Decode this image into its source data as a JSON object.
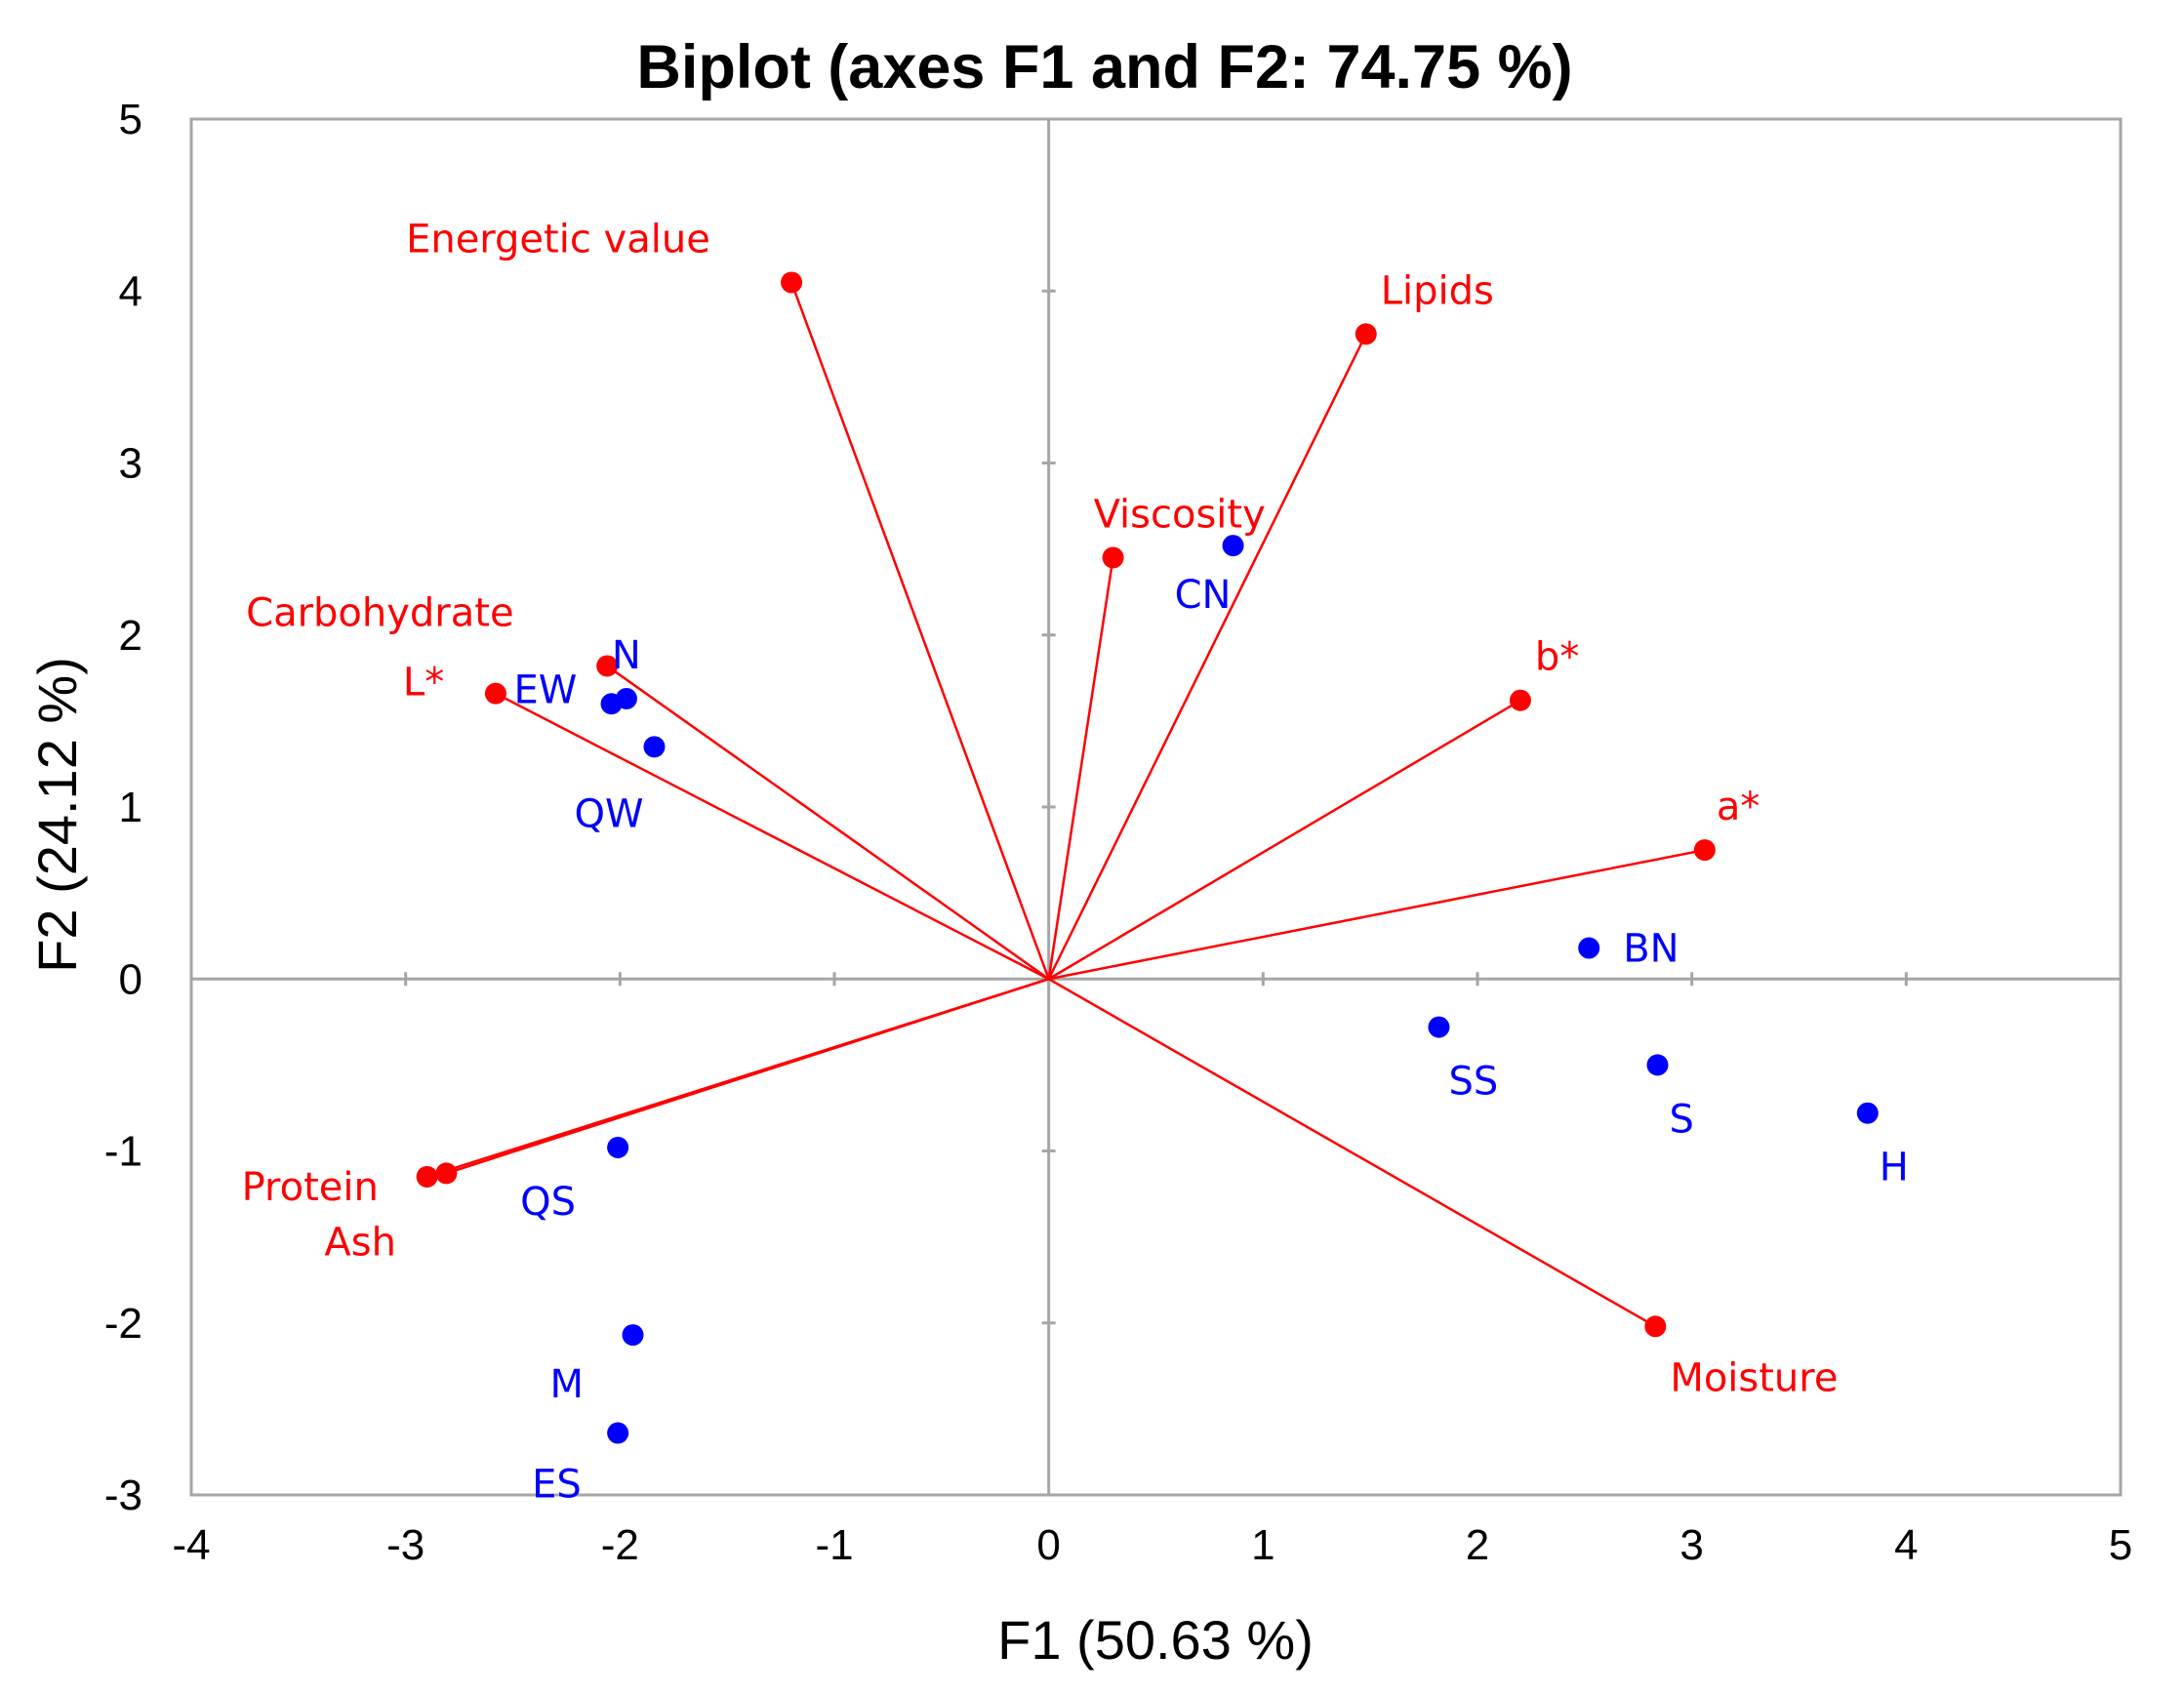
{
  "chart_data": {
    "type": "scatter",
    "title": "Biplot (axes F1 and F2: 74.75 %)",
    "xlabel": "F1 (50.63 %)",
    "ylabel": "F2 (24.12 %)",
    "xlim": [
      -4,
      5
    ],
    "ylim": [
      -3,
      5
    ],
    "x_ticks": [
      -4,
      -3,
      -2,
      -1,
      0,
      1,
      2,
      3,
      4,
      5
    ],
    "y_ticks": [
      -3,
      -2,
      -1,
      0,
      1,
      2,
      3,
      4,
      5
    ],
    "grid": false,
    "colors": {
      "variables": "#ff0000",
      "observations": "#0000ff",
      "frame": "#a6a6a6"
    },
    "variables": [
      {
        "name": "Energetic value",
        "x": -1.2,
        "y": 4.05
      },
      {
        "name": "Lipids",
        "x": 1.48,
        "y": 3.75
      },
      {
        "name": "Viscosity",
        "x": 0.3,
        "y": 2.45
      },
      {
        "name": "Carbohydrate",
        "x": -2.06,
        "y": 1.82
      },
      {
        "name": "L*",
        "x": -2.58,
        "y": 1.66
      },
      {
        "name": "b*",
        "x": 2.2,
        "y": 1.62
      },
      {
        "name": "a*",
        "x": 3.06,
        "y": 0.75
      },
      {
        "name": "Protein",
        "x": -2.9,
        "y": -1.15
      },
      {
        "name": "Ash",
        "x": -2.81,
        "y": -1.13
      },
      {
        "name": "Moisture",
        "x": 2.83,
        "y": -2.02
      }
    ],
    "observations": [
      {
        "name": "CN",
        "x": 0.86,
        "y": 2.52
      },
      {
        "name": "N",
        "x": -1.97,
        "y": 1.63
      },
      {
        "name": "EW",
        "x": -2.04,
        "y": 1.6
      },
      {
        "name": "QW",
        "x": -1.84,
        "y": 1.35
      },
      {
        "name": "BN",
        "x": 2.52,
        "y": 0.18
      },
      {
        "name": "SS",
        "x": 1.82,
        "y": -0.28
      },
      {
        "name": "S",
        "x": 2.84,
        "y": -0.5
      },
      {
        "name": "H",
        "x": 3.82,
        "y": -0.78
      },
      {
        "name": "QS",
        "x": -2.01,
        "y": -0.98
      },
      {
        "name": "M",
        "x": -1.94,
        "y": -2.07
      },
      {
        "name": "ES",
        "x": -2.01,
        "y": -2.64
      }
    ]
  }
}
